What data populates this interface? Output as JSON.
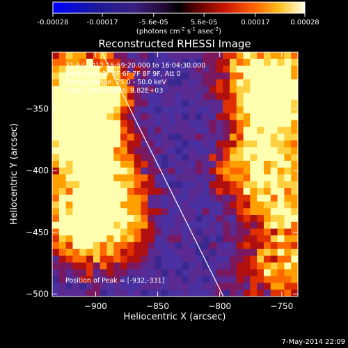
{
  "colorbar": {
    "tick_labels": [
      "-0.00028",
      "-0.00017",
      "-5.6e-05",
      "5.6e-05",
      "0.00017",
      "0.00028"
    ],
    "tick_values": [
      -0.00028,
      -0.00017,
      -5.6e-05,
      5.6e-05,
      0.00017,
      0.00028
    ],
    "range": [
      -0.00028,
      0.00028
    ],
    "units_text": "(photons cm",
    "units_sup1": "-2",
    "units_mid": " s",
    "units_sup2": "-1",
    "units_end": " asec",
    "units_sup3": "-2",
    "units_close": ")",
    "colors": [
      "#0000ff",
      "#1a1a8c",
      "#2a1a7a",
      "#5a2ec0",
      "#000000",
      "#6e0000",
      "#c81400",
      "#ff5a00",
      "#ffb400",
      "#ffff96",
      "#ffffff"
    ]
  },
  "annotations": {
    "time_range": "31-Jul-2012 15:59:20.000 to 16:04:30.000",
    "detectors": "Detectors: 3F 5F 6F 7F 8F 9F, Att 0",
    "energy": "Energy Range: 25.0 - 50.0 keV",
    "method": "Clean    Total counts: 9.82E+03",
    "peak": "Position of Peak = [-932,-331]"
  },
  "footer": {
    "date": "7-May-2014 22:09"
  },
  "chart_data": {
    "type": "heatmap",
    "title": "Reconstructed RHESSI Image",
    "xlabel": "Heliocentric X (arcsec)",
    "ylabel": "Heliocentric Y (arcsec)",
    "xlim": [
      -935,
      -737
    ],
    "ylim": [
      -502,
      -304
    ],
    "xticks": [
      -900,
      -850,
      -800,
      -750
    ],
    "yticks": [
      -350,
      -400,
      -450,
      -500
    ],
    "xtick_labels": [
      "−900",
      "−850",
      "−800",
      "−750"
    ],
    "ytick_labels": [
      "−350",
      "−400",
      "−450",
      "−500"
    ],
    "limb_line": {
      "x": [
        -895,
        -797
      ],
      "y": [
        -304,
        -502
      ]
    },
    "peak_position": [
      -932,
      -331
    ],
    "bright_regions": [
      {
        "x": -905,
        "y": -330,
        "intensity": 0.9
      },
      {
        "x": -918,
        "y": -360,
        "intensity": 1.0
      },
      {
        "x": -900,
        "y": -395,
        "intensity": 0.85
      },
      {
        "x": -910,
        "y": -445,
        "intensity": 0.8
      },
      {
        "x": -885,
        "y": -440,
        "intensity": 0.6
      },
      {
        "x": -765,
        "y": -320,
        "intensity": 0.9
      },
      {
        "x": -750,
        "y": -350,
        "intensity": 0.8
      },
      {
        "x": -770,
        "y": -395,
        "intensity": 0.75
      },
      {
        "x": -745,
        "y": -430,
        "intensity": 0.6
      },
      {
        "x": -755,
        "y": -480,
        "intensity": 0.55
      }
    ]
  }
}
